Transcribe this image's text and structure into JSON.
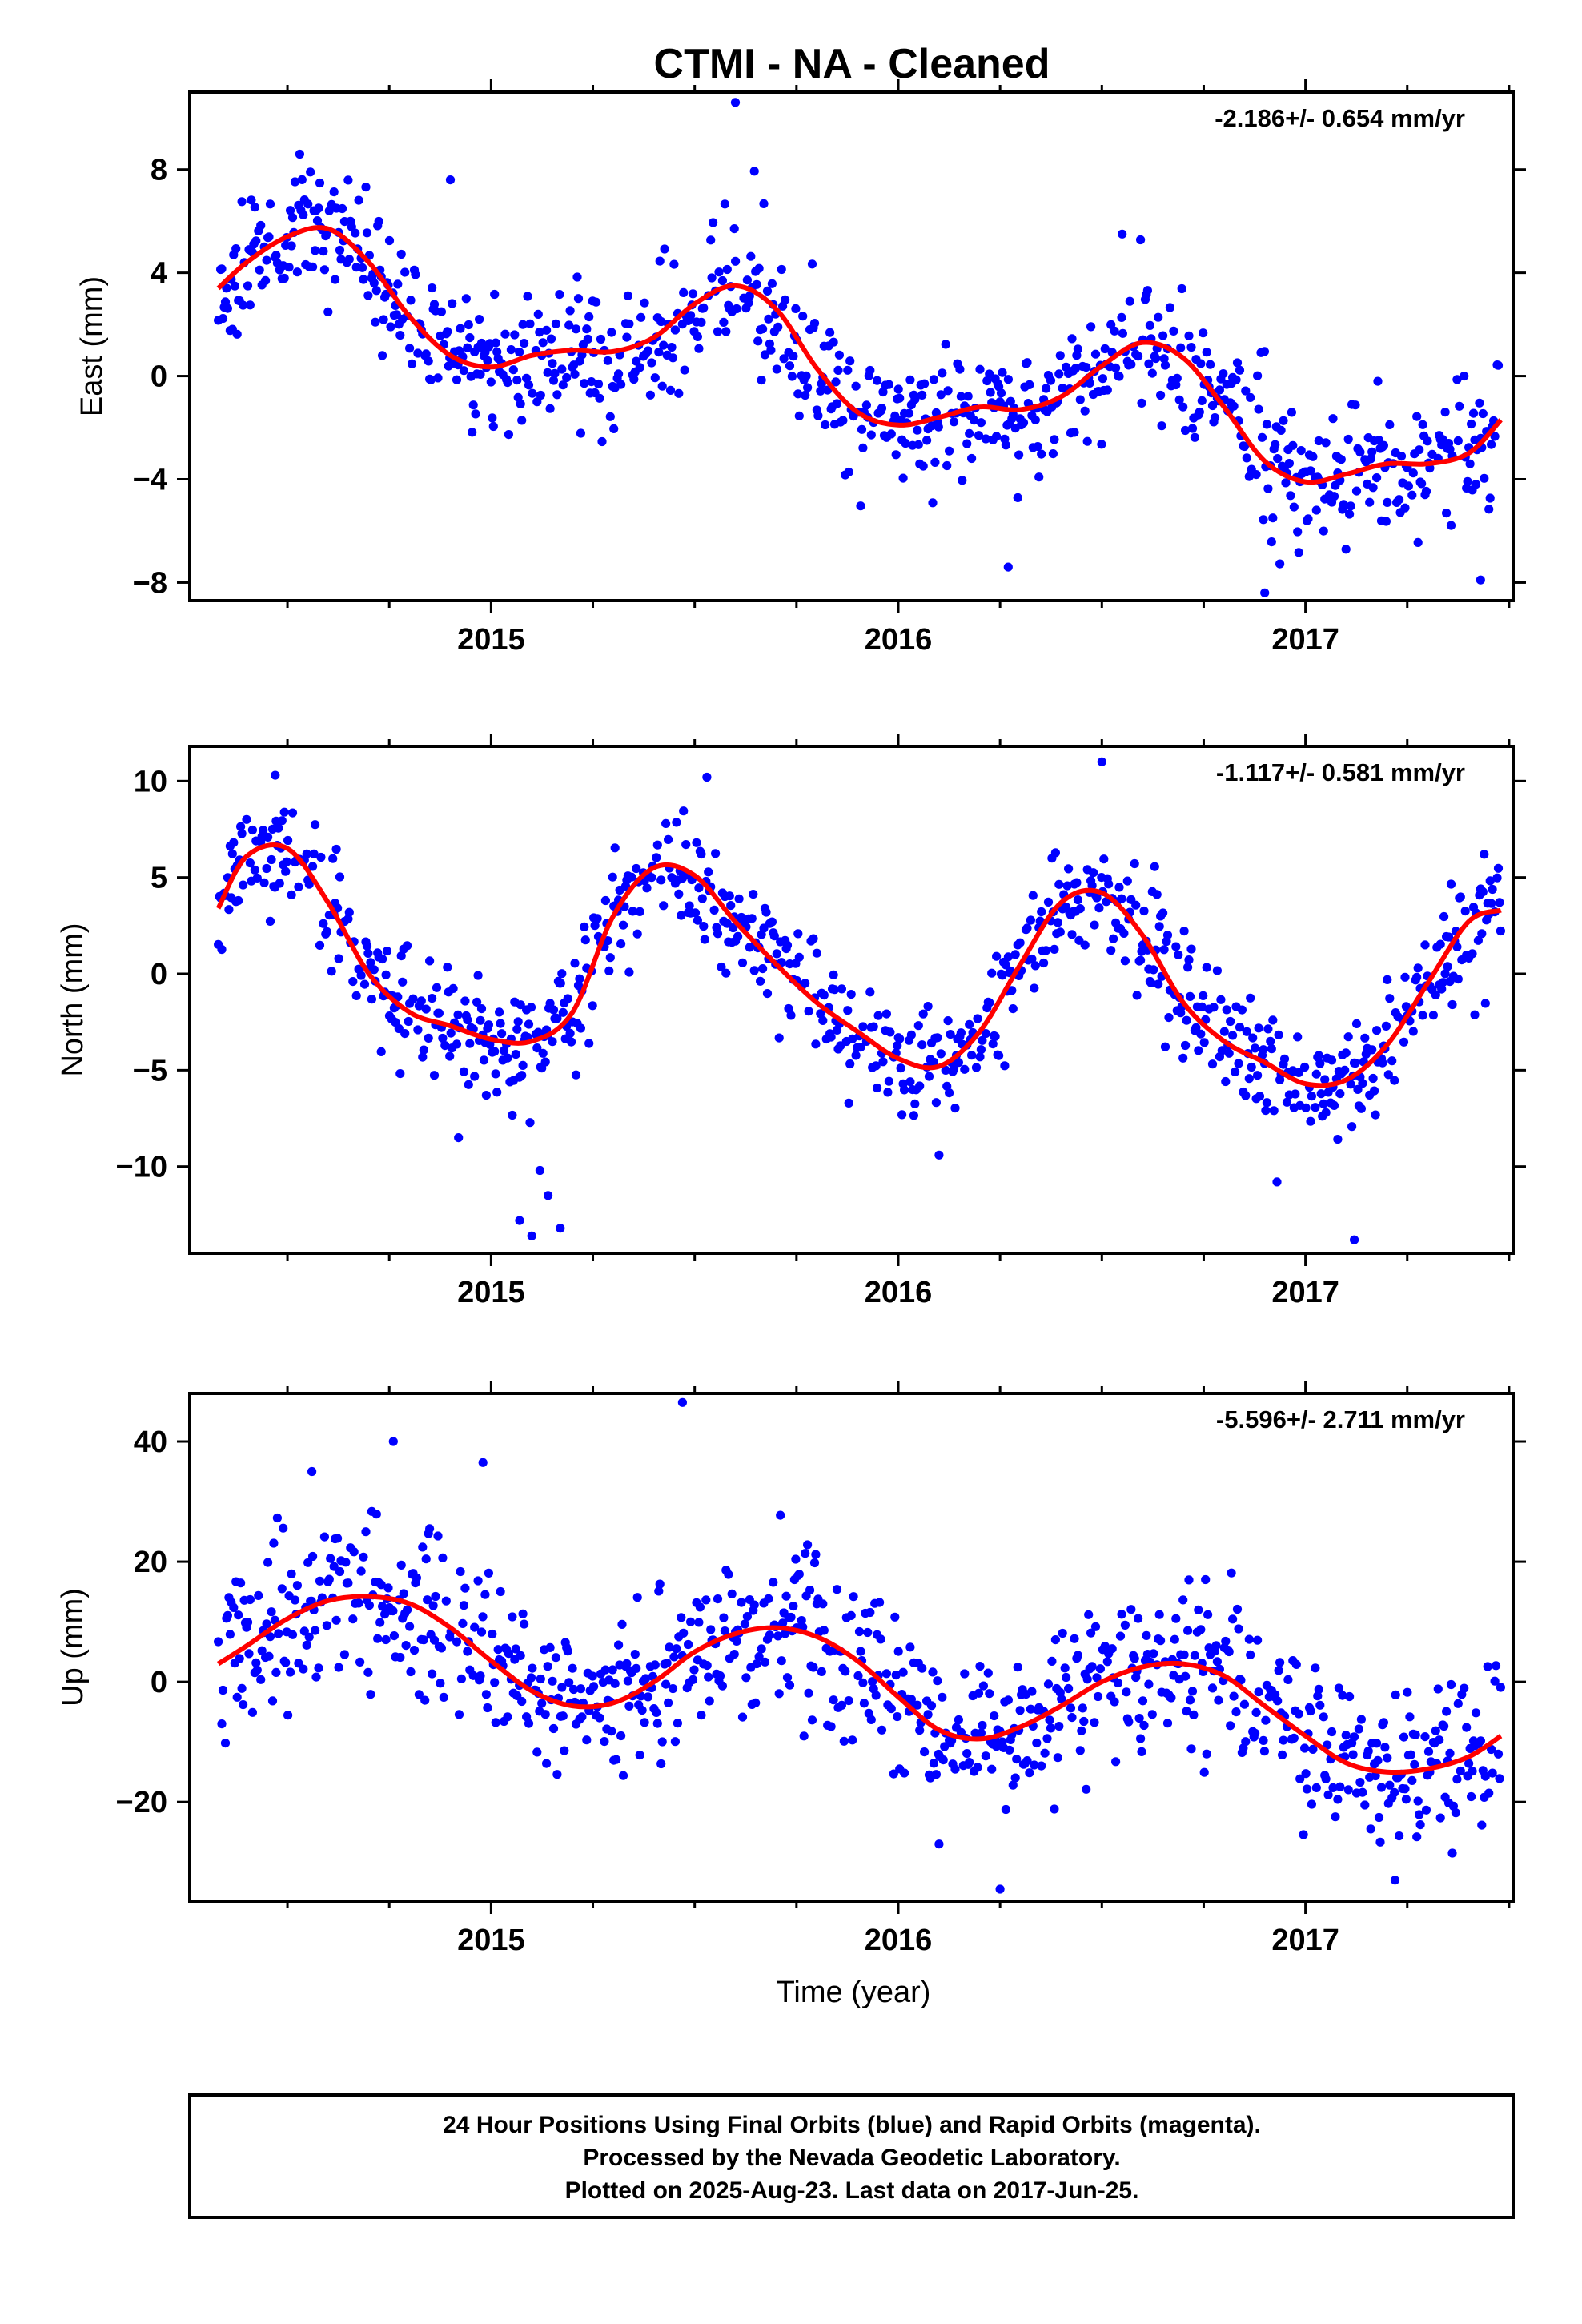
{
  "title": "CTMI  - NA - Cleaned",
  "colors": {
    "final_orbits": "#0000ff",
    "fit": "#ff0000",
    "frame": "#000000"
  },
  "chart_data": [
    {
      "type": "scatter",
      "component": "east",
      "ylabel": "East (mm)",
      "rate_text": "-2.186+/- 0.654 mm/yr",
      "xlim": [
        2014.26,
        2017.51
      ],
      "ylim": [
        -8.7,
        11.0
      ],
      "y_ticks": [
        8,
        4,
        0,
        -4,
        -8
      ],
      "y_tick_labels": [
        "8",
        "4",
        "0",
        "−4",
        "−8"
      ],
      "x_ticks": [
        2015,
        2016,
        2017
      ],
      "x_tick_labels": [
        "2015",
        "2016",
        "2017"
      ],
      "fit": {
        "t": [
          2014.33,
          2014.4,
          2014.5,
          2014.6,
          2014.7,
          2014.8,
          2014.9,
          2015.0,
          2015.1,
          2015.2,
          2015.3,
          2015.4,
          2015.5,
          2015.6,
          2015.7,
          2015.8,
          2015.9,
          2016.0,
          2016.1,
          2016.2,
          2016.3,
          2016.4,
          2016.5,
          2016.6,
          2016.7,
          2016.8,
          2016.9,
          2017.0,
          2017.1,
          2017.2,
          2017.3,
          2017.4,
          2017.48
        ],
        "y": [
          3.4,
          4.4,
          5.4,
          5.7,
          4.4,
          2.3,
          0.8,
          0.35,
          0.8,
          1.0,
          0.95,
          1.5,
          2.8,
          3.5,
          2.6,
          0.3,
          -1.4,
          -1.9,
          -1.6,
          -1.2,
          -1.3,
          -0.8,
          0.4,
          1.3,
          0.7,
          -1.2,
          -3.3,
          -4.1,
          -3.8,
          -3.4,
          -3.4,
          -3.0,
          -1.7
        ]
      },
      "scatter": {
        "seed": 11,
        "noise_sd": 1.3
      },
      "outliers": [
        [
          2015.6,
          10.6
        ],
        [
          2014.9,
          7.6
        ],
        [
          2016.55,
          5.5
        ],
        [
          2016.9,
          -8.4
        ],
        [
          2017.43,
          -7.9
        ],
        [
          2016.27,
          -7.4
        ]
      ]
    },
    {
      "type": "scatter",
      "component": "north",
      "ylabel": "North (mm)",
      "rate_text": "-1.117+/- 0.581 mm/yr",
      "xlim": [
        2014.26,
        2017.51
      ],
      "ylim": [
        -14.5,
        11.8
      ],
      "y_ticks": [
        10,
        5,
        0,
        -5,
        -10
      ],
      "y_tick_labels": [
        "10",
        "5",
        "0",
        "−5",
        "−10"
      ],
      "x_ticks": [
        2015,
        2016,
        2017
      ],
      "x_tick_labels": [
        "2015",
        "2016",
        "2017"
      ],
      "fit": {
        "t": [
          2014.33,
          2014.4,
          2014.5,
          2014.6,
          2014.7,
          2014.8,
          2014.9,
          2015.0,
          2015.1,
          2015.2,
          2015.3,
          2015.4,
          2015.5,
          2015.6,
          2015.7,
          2015.8,
          2015.9,
          2016.0,
          2016.1,
          2016.2,
          2016.3,
          2016.4,
          2016.5,
          2016.6,
          2016.7,
          2016.8,
          2016.9,
          2017.0,
          2017.1,
          2017.2,
          2017.3,
          2017.4,
          2017.48
        ],
        "y": [
          3.4,
          6.1,
          6.5,
          3.7,
          0.0,
          -2.0,
          -2.7,
          -3.4,
          -3.5,
          -2.0,
          3.0,
          5.5,
          5.1,
          2.7,
          0.5,
          -1.5,
          -3.0,
          -4.4,
          -4.8,
          -3.0,
          0.5,
          3.7,
          4.2,
          2.0,
          -1.5,
          -3.5,
          -4.6,
          -5.7,
          -5.5,
          -3.7,
          -0.5,
          2.7,
          3.3
        ]
      },
      "scatter": {
        "seed": 23,
        "noise_sd": 1.45
      },
      "outliers": [
        [
          2015.07,
          -12.8
        ],
        [
          2015.1,
          -13.6
        ],
        [
          2015.14,
          -11.5
        ],
        [
          2015.17,
          -13.2
        ],
        [
          2015.12,
          -10.2
        ],
        [
          2016.5,
          11.0
        ],
        [
          2014.47,
          10.3
        ],
        [
          2015.53,
          10.2
        ],
        [
          2017.12,
          -13.8
        ],
        [
          2014.92,
          -8.5
        ],
        [
          2016.1,
          -9.4
        ],
        [
          2016.93,
          -10.8
        ]
      ]
    },
    {
      "type": "scatter",
      "component": "up",
      "ylabel": "Up (mm)",
      "xlabel": "Time (year)",
      "rate_text": "-5.596+/- 2.711 mm/yr",
      "xlim": [
        2014.26,
        2017.51
      ],
      "ylim": [
        -36.5,
        48.0
      ],
      "y_ticks": [
        40,
        20,
        0,
        -20
      ],
      "y_tick_labels": [
        "40",
        "20",
        "0",
        "−20"
      ],
      "x_ticks": [
        2015,
        2016,
        2017
      ],
      "x_tick_labels": [
        "2015",
        "2016",
        "2017"
      ],
      "fit": {
        "t": [
          2014.33,
          2014.4,
          2014.5,
          2014.6,
          2014.7,
          2014.8,
          2014.9,
          2015.0,
          2015.1,
          2015.2,
          2015.3,
          2015.4,
          2015.5,
          2015.6,
          2015.7,
          2015.8,
          2015.9,
          2016.0,
          2016.1,
          2016.2,
          2016.3,
          2016.4,
          2016.5,
          2016.6,
          2016.7,
          2016.8,
          2016.9,
          2017.0,
          2017.1,
          2017.2,
          2017.3,
          2017.4,
          2017.48
        ],
        "y": [
          3.0,
          6.0,
          10.5,
          13.5,
          14.2,
          13.0,
          9.0,
          3.5,
          -1.5,
          -4.0,
          -3.5,
          0.0,
          5.0,
          8.0,
          9.0,
          7.5,
          3.5,
          -2.5,
          -8.0,
          -9.5,
          -7.5,
          -4.0,
          0.0,
          2.5,
          3.0,
          1.0,
          -4.0,
          -9.0,
          -13.5,
          -15.0,
          -14.5,
          -12.5,
          -9.0
        ]
      },
      "scatter": {
        "seed": 37,
        "noise_sd": 6.8
      },
      "outliers": [
        [
          2015.47,
          46.5
        ],
        [
          2014.76,
          40.0
        ],
        [
          2014.98,
          36.5
        ],
        [
          2016.25,
          -34.5
        ],
        [
          2017.22,
          -33.0
        ],
        [
          2016.1,
          -27.0
        ],
        [
          2014.56,
          35.0
        ]
      ]
    }
  ],
  "footer": {
    "line1": "24 Hour Positions Using Final Orbits (blue) and Rapid Orbits (magenta).",
    "line2": "Processed by the Nevada Geodetic Laboratory.",
    "line3": "Plotted on 2025-Aug-23. Last data on 2017-Jun-25."
  }
}
